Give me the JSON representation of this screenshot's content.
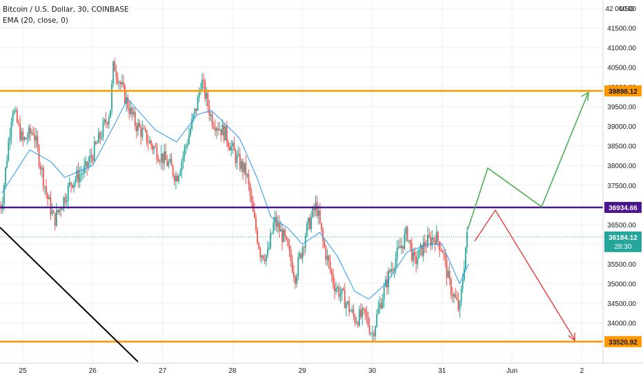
{
  "header": {
    "symbol_line": "Bitcoin / U.S. Dollar, 30, COINBASE",
    "indicator_line": "EMA (20, close, 0)"
  },
  "currency_label": "USD",
  "colors": {
    "up_candle": "#26a69a",
    "down_candle": "#ef5350",
    "ema": "#2196f3",
    "support_resistance": "#ff9800",
    "pivot_line": "#4a148c",
    "bull_arrow": "#4caf50",
    "bear_arrow": "#e53935",
    "trendline": "#000000",
    "current_price": "#26a69a"
  },
  "chart_data": {
    "type": "candlestick",
    "title": "Bitcoin / U.S. Dollar, 30, COINBASE",
    "x_tick_labels": [
      "25",
      "26",
      "27",
      "28",
      "29",
      "30",
      "31",
      "Jun",
      "2"
    ],
    "y_tick_labels": [
      "42 000.00",
      "41500.00",
      "41000.00",
      "40500.00",
      "40000.00",
      "39500.00",
      "39000.00",
      "38500.00",
      "38000.00",
      "37500.00",
      "37000.00",
      "36500.00",
      "36000.00",
      "35500.00",
      "35000.00",
      "34500.00",
      "34000.00",
      "33500.00"
    ],
    "ylim": [
      33200,
      42150
    ],
    "horizontal_levels": [
      {
        "label": "39898.12",
        "value": 39898.12,
        "color": "#ff9800"
      },
      {
        "label": "36934.66",
        "value": 36934.66,
        "color": "#4a148c"
      },
      {
        "label": "33520.92",
        "value": 33520.92,
        "color": "#ff9800"
      }
    ],
    "last_price": {
      "label": "36184.12",
      "countdown": "28:30",
      "value": 36184.12
    },
    "ema_period": 20,
    "close_series_approx": [
      {
        "day": 24.7,
        "close": 37000
      },
      {
        "day": 24.85,
        "close": 39500
      },
      {
        "day": 25.0,
        "close": 38600
      },
      {
        "day": 25.15,
        "close": 38900
      },
      {
        "day": 25.35,
        "close": 37200
      },
      {
        "day": 25.45,
        "close": 36600
      },
      {
        "day": 25.7,
        "close": 37600
      },
      {
        "day": 25.9,
        "close": 37900
      },
      {
        "day": 26.1,
        "close": 38700
      },
      {
        "day": 26.25,
        "close": 39400
      },
      {
        "day": 26.3,
        "close": 40600
      },
      {
        "day": 26.45,
        "close": 39800
      },
      {
        "day": 26.6,
        "close": 39100
      },
      {
        "day": 26.85,
        "close": 38500
      },
      {
        "day": 27.1,
        "close": 38000
      },
      {
        "day": 27.2,
        "close": 37700
      },
      {
        "day": 27.35,
        "close": 38600
      },
      {
        "day": 27.5,
        "close": 39600
      },
      {
        "day": 27.55,
        "close": 40200
      },
      {
        "day": 27.7,
        "close": 39200
      },
      {
        "day": 27.9,
        "close": 38800
      },
      {
        "day": 28.05,
        "close": 38200
      },
      {
        "day": 28.2,
        "close": 37800
      },
      {
        "day": 28.3,
        "close": 36700
      },
      {
        "day": 28.4,
        "close": 35800
      },
      {
        "day": 28.5,
        "close": 35700
      },
      {
        "day": 28.6,
        "close": 36600
      },
      {
        "day": 28.75,
        "close": 36100
      },
      {
        "day": 28.9,
        "close": 35200
      },
      {
        "day": 29.05,
        "close": 36300
      },
      {
        "day": 29.2,
        "close": 37000
      },
      {
        "day": 29.3,
        "close": 36000
      },
      {
        "day": 29.45,
        "close": 35000
      },
      {
        "day": 29.6,
        "close": 34600
      },
      {
        "day": 29.75,
        "close": 34100
      },
      {
        "day": 29.9,
        "close": 34200
      },
      {
        "day": 30.0,
        "close": 33700
      },
      {
        "day": 30.1,
        "close": 34400
      },
      {
        "day": 30.25,
        "close": 35300
      },
      {
        "day": 30.4,
        "close": 35900
      },
      {
        "day": 30.5,
        "close": 36300
      },
      {
        "day": 30.6,
        "close": 35500
      },
      {
        "day": 30.75,
        "close": 36000
      },
      {
        "day": 30.9,
        "close": 36200
      },
      {
        "day": 31.0,
        "close": 35900
      },
      {
        "day": 31.1,
        "close": 35000
      },
      {
        "day": 31.25,
        "close": 34300
      },
      {
        "day": 31.35,
        "close": 36184
      }
    ],
    "ema_series_approx": [
      {
        "day": 24.7,
        "close": 37300
      },
      {
        "day": 25.1,
        "close": 38400
      },
      {
        "day": 25.4,
        "close": 38100
      },
      {
        "day": 25.6,
        "close": 37700
      },
      {
        "day": 26.0,
        "close": 38000
      },
      {
        "day": 26.3,
        "close": 39000
      },
      {
        "day": 26.5,
        "close": 39700
      },
      {
        "day": 26.9,
        "close": 38900
      },
      {
        "day": 27.2,
        "close": 38600
      },
      {
        "day": 27.5,
        "close": 39300
      },
      {
        "day": 27.7,
        "close": 39400
      },
      {
        "day": 28.1,
        "close": 38700
      },
      {
        "day": 28.35,
        "close": 37700
      },
      {
        "day": 28.55,
        "close": 36700
      },
      {
        "day": 28.8,
        "close": 36400
      },
      {
        "day": 29.0,
        "close": 36000
      },
      {
        "day": 29.25,
        "close": 36300
      },
      {
        "day": 29.5,
        "close": 35700
      },
      {
        "day": 29.75,
        "close": 34800
      },
      {
        "day": 29.95,
        "close": 34600
      },
      {
        "day": 30.2,
        "close": 35000
      },
      {
        "day": 30.5,
        "close": 35800
      },
      {
        "day": 30.8,
        "close": 36000
      },
      {
        "day": 31.0,
        "close": 36000
      },
      {
        "day": 31.25,
        "close": 35000
      },
      {
        "day": 31.38,
        "close": 35500
      }
    ],
    "projection_bull": [
      {
        "day": 31.38,
        "value": 36500
      },
      {
        "day": 31.68,
        "value": 37950
      },
      {
        "day": 32.45,
        "value": 36960
      },
      {
        "day": 32.1,
        "value": 39850
      }
    ],
    "projection_bear": [
      {
        "day": 31.55,
        "value": 36200
      },
      {
        "day": 31.8,
        "value": 36850
      },
      {
        "day": 32.9,
        "value": 33550
      }
    ],
    "grid": true
  }
}
